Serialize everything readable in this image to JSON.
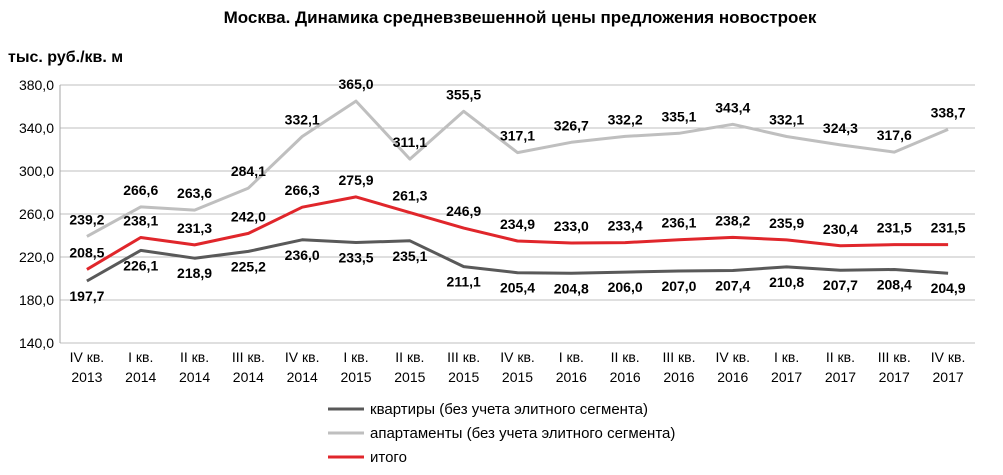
{
  "chart_data": {
    "type": "line",
    "title": "Москва. Динамика средневзвешенной цены предложения новостроек",
    "ylabel": "тыс. руб./кв. м",
    "xlabel": "",
    "ylim": [
      140,
      380
    ],
    "yticks": [
      "140,0",
      "180,0",
      "220,0",
      "260,0",
      "300,0",
      "340,0",
      "380,0"
    ],
    "ytick_values": [
      140,
      180,
      220,
      260,
      300,
      340,
      380
    ],
    "grid": "horizontal",
    "legend_position": "bottom",
    "categories": [
      [
        "IV кв.",
        "2013"
      ],
      [
        "I кв.",
        "2014"
      ],
      [
        "II кв.",
        "2014"
      ],
      [
        "III кв.",
        "2014"
      ],
      [
        "IV кв.",
        "2014"
      ],
      [
        "I кв.",
        "2015"
      ],
      [
        "II кв.",
        "2015"
      ],
      [
        "III кв.",
        "2015"
      ],
      [
        "IV кв.",
        "2015"
      ],
      [
        "I кв.",
        "2016"
      ],
      [
        "II кв.",
        "2016"
      ],
      [
        "III кв.",
        "2016"
      ],
      [
        "IV кв.",
        "2016"
      ],
      [
        "I кв.",
        "2017"
      ],
      [
        "II кв.",
        "2017"
      ],
      [
        "III кв.",
        "2017"
      ],
      [
        "IV кв.",
        "2017"
      ]
    ],
    "series": [
      {
        "name": "квартиры (без учета элитного сегмента)",
        "color": "#595959",
        "values": [
          197.7,
          226.1,
          218.9,
          225.2,
          236.0,
          233.5,
          235.1,
          211.1,
          205.4,
          204.8,
          206.0,
          207.0,
          207.4,
          210.8,
          207.7,
          208.4,
          204.9
        ],
        "labels": [
          "197,7",
          "226,1",
          "218,9",
          "225,2",
          "236,0",
          "233,5",
          "235,1",
          "211,1",
          "205,4",
          "204,8",
          "206,0",
          "207,0",
          "207,4",
          "210,8",
          "207,7",
          "208,4",
          "204,9"
        ]
      },
      {
        "name": "апартаменты (без учета элитного сегмента)",
        "color": "#bfbfbf",
        "values": [
          239.2,
          266.6,
          263.6,
          284.1,
          332.1,
          365.0,
          311.1,
          355.5,
          317.1,
          326.7,
          332.2,
          335.1,
          343.4,
          332.1,
          324.3,
          317.6,
          338.7
        ],
        "labels": [
          "239,2",
          "266,6",
          "263,6",
          "284,1",
          "332,1",
          "365,0",
          "311,1",
          "355,5",
          "317,1",
          "326,7",
          "332,2",
          "335,1",
          "343,4",
          "332,1",
          "324,3",
          "317,6",
          "338,7"
        ]
      },
      {
        "name": "итого",
        "color": "#e0262b",
        "values": [
          208.5,
          238.1,
          231.3,
          242.0,
          266.3,
          275.9,
          261.3,
          246.9,
          234.9,
          233.0,
          233.4,
          236.1,
          238.2,
          235.9,
          230.4,
          231.5,
          231.5
        ],
        "labels": [
          "208,5",
          "238,1",
          "231,3",
          "242,0",
          "266,3",
          "275,9",
          "261,3",
          "246,9",
          "234,9",
          "233,0",
          "233,4",
          "236,1",
          "238,2",
          "235,9",
          "230,4",
          "231,5",
          "231,5"
        ]
      }
    ]
  }
}
